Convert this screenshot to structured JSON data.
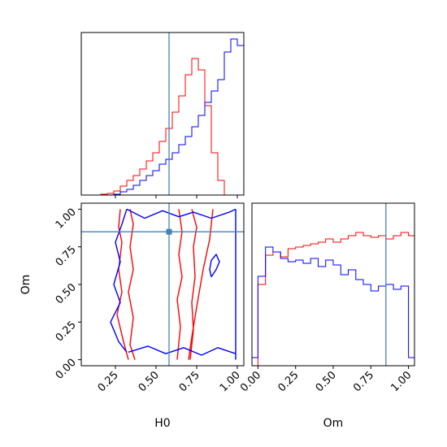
{
  "chart_data": {
    "type": "corner",
    "parameters": [
      "H0",
      "Om"
    ],
    "truth": {
      "H0": 0.58,
      "Om": 0.85
    },
    "truth_color": "#4682b4",
    "series": [
      {
        "color": "#ff0000"
      },
      {
        "color": "#0000ff"
      }
    ],
    "panels": [
      {
        "id": "H0-marginal",
        "type": "step-histogram",
        "xlim": [
          0.04,
          1.04
        ],
        "bin_edges": [
          0.0,
          0.04,
          0.08,
          0.12,
          0.16,
          0.2,
          0.24,
          0.28,
          0.32,
          0.36,
          0.4,
          0.44,
          0.48,
          0.52,
          0.56,
          0.6,
          0.64,
          0.68,
          0.72,
          0.76,
          0.8,
          0.84,
          0.88,
          0.92,
          0.96,
          1.0,
          1.04
        ],
        "histograms": [
          [
            0,
            0,
            0,
            0,
            0.005,
            0.01,
            0.025,
            0.055,
            0.09,
            0.12,
            0.16,
            0.21,
            0.26,
            0.33,
            0.41,
            0.51,
            0.61,
            0.74,
            0.84,
            0.77,
            0.55,
            0.26,
            0.09,
            0,
            0,
            0
          ],
          [
            0,
            0,
            0,
            0,
            0,
            0,
            0.005,
            0.02,
            0.035,
            0.06,
            0.09,
            0.12,
            0.15,
            0.19,
            0.22,
            0.26,
            0.31,
            0.36,
            0.42,
            0.49,
            0.57,
            0.64,
            0.71,
            0.88,
            0.96,
            0.92
          ]
        ]
      },
      {
        "id": "H0-Om-joint",
        "type": "contour",
        "xlim": [
          0.04,
          1.04
        ],
        "ylim": [
          -0.04,
          1.04
        ],
        "contours": [
          {
            "series": 0,
            "paths": [
              [
                [
                  0.28,
                  1.0
                ],
                [
                  0.27,
                  0.88
                ],
                [
                  0.29,
                  0.78
                ],
                [
                  0.27,
                  0.6
                ],
                [
                  0.29,
                  0.45
                ],
                [
                  0.26,
                  0.3
                ],
                [
                  0.3,
                  0.12
                ],
                [
                  0.33,
                  0.0
                ]
              ],
              [
                [
                  0.72,
                  1.0
                ],
                [
                  0.75,
                  0.88
                ],
                [
                  0.73,
                  0.75
                ],
                [
                  0.74,
                  0.55
                ],
                [
                  0.72,
                  0.38
                ],
                [
                  0.73,
                  0.2
                ],
                [
                  0.71,
                  0.0
                ]
              ],
              [
                [
                  0.34,
                  1.0
                ],
                [
                  0.36,
                  0.9
                ],
                [
                  0.34,
                  0.75
                ],
                [
                  0.36,
                  0.6
                ],
                [
                  0.33,
                  0.45
                ],
                [
                  0.36,
                  0.28
                ],
                [
                  0.34,
                  0.1
                ],
                [
                  0.37,
                  0.0
                ]
              ],
              [
                [
                  0.64,
                  1.0
                ],
                [
                  0.66,
                  0.85
                ],
                [
                  0.64,
                  0.7
                ],
                [
                  0.66,
                  0.55
                ],
                [
                  0.63,
                  0.4
                ],
                [
                  0.65,
                  0.22
                ],
                [
                  0.63,
                  0.0
                ]
              ],
              [
                [
                  0.85,
                  1.0
                ],
                [
                  0.83,
                  0.8
                ],
                [
                  0.79,
                  0.6
                ],
                [
                  0.75,
                  0.35
                ],
                [
                  0.72,
                  0.15
                ],
                [
                  0.7,
                  0.0
                ]
              ]
            ]
          },
          {
            "series": 1,
            "paths": [
              [
                [
                  0.32,
                  1.0
                ],
                [
                  0.43,
                  0.94
                ],
                [
                  0.54,
                  0.99
                ],
                [
                  0.64,
                  0.95
                ],
                [
                  0.73,
                  0.98
                ],
                [
                  0.84,
                  0.94
                ],
                [
                  0.95,
                  0.98
                ],
                [
                  0.99,
                  1.0
                ]
              ],
              [
                [
                  0.33,
                  0.05
                ],
                [
                  0.45,
                  0.09
                ],
                [
                  0.56,
                  0.04
                ],
                [
                  0.67,
                  0.08
                ],
                [
                  0.78,
                  0.03
                ],
                [
                  0.88,
                  0.08
                ],
                [
                  0.99,
                  0.04
                ]
              ],
              [
                [
                  0.32,
                  1.0
                ],
                [
                  0.29,
                  0.9
                ],
                [
                  0.25,
                  0.78
                ],
                [
                  0.28,
                  0.65
                ],
                [
                  0.24,
                  0.5
                ],
                [
                  0.28,
                  0.38
                ],
                [
                  0.22,
                  0.25
                ],
                [
                  0.27,
                  0.12
                ],
                [
                  0.32,
                  0.05
                ]
              ],
              [
                [
                  0.99,
                  1.0
                ],
                [
                  0.99,
                  0.0
                ]
              ],
              [
                [
                  0.84,
                  0.55
                ],
                [
                  0.87,
                  0.6
                ],
                [
                  0.89,
                  0.65
                ],
                [
                  0.87,
                  0.7
                ],
                [
                  0.84,
                  0.66
                ],
                [
                  0.83,
                  0.6
                ],
                [
                  0.84,
                  0.55
                ]
              ]
            ]
          }
        ]
      },
      {
        "id": "Om-marginal",
        "type": "step-histogram",
        "xlim": [
          -0.04,
          1.04
        ],
        "bin_edges": [
          -0.04,
          0.0,
          0.05,
          0.1,
          0.15,
          0.2,
          0.25,
          0.3,
          0.35,
          0.4,
          0.45,
          0.5,
          0.55,
          0.6,
          0.65,
          0.7,
          0.75,
          0.8,
          0.85,
          0.9,
          0.95,
          1.0,
          1.04
        ],
        "histograms": [
          [
            0,
            0.5,
            0.68,
            0.7,
            0.67,
            0.72,
            0.73,
            0.74,
            0.75,
            0.76,
            0.78,
            0.76,
            0.78,
            0.8,
            0.82,
            0.8,
            0.79,
            0.8,
            0.78,
            0.8,
            0.82,
            0.8
          ],
          [
            0.05,
            0.55,
            0.73,
            0.7,
            0.66,
            0.64,
            0.65,
            0.63,
            0.66,
            0.61,
            0.65,
            0.62,
            0.56,
            0.59,
            0.53,
            0.5,
            0.46,
            0.49,
            0.5,
            0.47,
            0.49,
            0.05
          ]
        ]
      }
    ],
    "xticks": {
      "H0": [
        "0.25",
        "0.50",
        "0.75",
        "1.00"
      ],
      "Om": [
        "0.00",
        "0.25",
        "0.50",
        "0.75",
        "1.00"
      ]
    },
    "yticks": {
      "Om": [
        "0.00",
        "0.25",
        "0.50",
        "0.75",
        "1.00"
      ]
    },
    "xlabels": {
      "H0": "H0",
      "Om": "Om"
    },
    "ylabels": {
      "Om": "Om"
    }
  }
}
